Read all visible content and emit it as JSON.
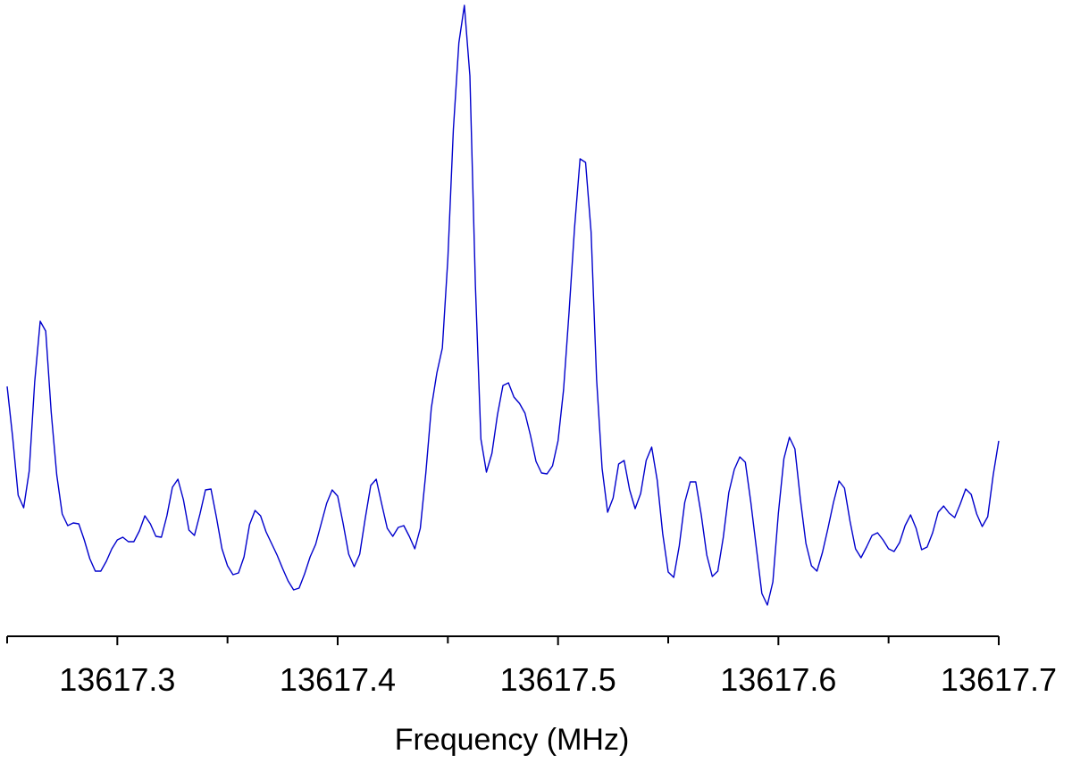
{
  "chart_data": {
    "type": "line",
    "xlabel": "Frequency (MHz)",
    "color": "#0000cc",
    "xlim": [
      13617.25,
      13617.7
    ],
    "ylim": [
      0,
      700
    ],
    "xticks": [
      13617.3,
      13617.4,
      13617.5,
      13617.6,
      13617.7
    ],
    "xminorticks": [
      13617.25,
      13617.35,
      13617.45,
      13617.55,
      13617.65
    ],
    "x": [
      13617.25,
      13617.2525,
      13617.255,
      13617.2575,
      13617.26,
      13617.2625,
      13617.265,
      13617.2675,
      13617.27,
      13617.2725,
      13617.275,
      13617.2775,
      13617.28,
      13617.2825,
      13617.285,
      13617.2875,
      13617.29,
      13617.2925,
      13617.295,
      13617.2975,
      13617.3,
      13617.3025,
      13617.305,
      13617.3075,
      13617.31,
      13617.3125,
      13617.315,
      13617.3175,
      13617.32,
      13617.3225,
      13617.325,
      13617.3275,
      13617.33,
      13617.3325,
      13617.335,
      13617.3375,
      13617.34,
      13617.3425,
      13617.345,
      13617.3475,
      13617.35,
      13617.3525,
      13617.355,
      13617.3575,
      13617.36,
      13617.3625,
      13617.365,
      13617.3675,
      13617.37,
      13617.3725,
      13617.375,
      13617.3775,
      13617.38,
      13617.3825,
      13617.385,
      13617.3875,
      13617.39,
      13617.3925,
      13617.395,
      13617.3975,
      13617.4,
      13617.4025,
      13617.405,
      13617.4075,
      13617.41,
      13617.4125,
      13617.415,
      13617.4175,
      13617.42,
      13617.4225,
      13617.425,
      13617.4275,
      13617.43,
      13617.4325,
      13617.435,
      13617.4375,
      13617.44,
      13617.4425,
      13617.445,
      13617.4475,
      13617.45,
      13617.4525,
      13617.455,
      13617.4575,
      13617.46,
      13617.4625,
      13617.465,
      13617.4675,
      13617.47,
      13617.4725,
      13617.475,
      13617.4775,
      13617.48,
      13617.4825,
      13617.485,
      13617.4875,
      13617.49,
      13617.4925,
      13617.495,
      13617.4975,
      13617.5,
      13617.5025,
      13617.505,
      13617.5075,
      13617.51,
      13617.5125,
      13617.515,
      13617.5175,
      13617.52,
      13617.5225,
      13617.525,
      13617.5275,
      13617.53,
      13617.5325,
      13617.535,
      13617.5375,
      13617.54,
      13617.5425,
      13617.545,
      13617.5475,
      13617.55,
      13617.5525,
      13617.555,
      13617.5575,
      13617.56,
      13617.5625,
      13617.565,
      13617.5675,
      13617.57,
      13617.5725,
      13617.575,
      13617.5775,
      13617.58,
      13617.5825,
      13617.585,
      13617.5875,
      13617.59,
      13617.5925,
      13617.595,
      13617.5975,
      13617.6,
      13617.6025,
      13617.605,
      13617.6075,
      13617.61,
      13617.6125,
      13617.615,
      13617.6175,
      13617.62,
      13617.6225,
      13617.625,
      13617.6275,
      13617.63,
      13617.6325,
      13617.635,
      13617.6375,
      13617.64,
      13617.6425,
      13617.645,
      13617.6475,
      13617.65,
      13617.6525,
      13617.655,
      13617.6575,
      13617.66,
      13617.6625,
      13617.665,
      13617.6675,
      13617.67,
      13617.6725,
      13617.675,
      13617.6775,
      13617.68,
      13617.6825,
      13617.685,
      13617.6875,
      13617.69,
      13617.6925,
      13617.695,
      13617.6975,
      13617.7
    ],
    "values": [
      267,
      210,
      145,
      131,
      172,
      272,
      340,
      329,
      238,
      168,
      124,
      111,
      114,
      113,
      95,
      74,
      60,
      60,
      71,
      85,
      95,
      98,
      93,
      93,
      105,
      122,
      113,
      99,
      98,
      122,
      154,
      163,
      140,
      106,
      100,
      124,
      151,
      152,
      120,
      85,
      66,
      56,
      58,
      76,
      112,
      128,
      122,
      104,
      91,
      78,
      63,
      49,
      39,
      41,
      57,
      76,
      90,
      113,
      136,
      151,
      144,
      113,
      79,
      65,
      79,
      119,
      156,
      163,
      135,
      108,
      99,
      109,
      111,
      99,
      85,
      108,
      170,
      243,
      282,
      310,
      410,
      555,
      652,
      694,
      615,
      380,
      208,
      171,
      192,
      235,
      268,
      271,
      255,
      248,
      237,
      212,
      183,
      170,
      169,
      178,
      206,
      263,
      350,
      445,
      522,
      518,
      440,
      275,
      175,
      126,
      142,
      180,
      184,
      151,
      130,
      147,
      184,
      199,
      162,
      102,
      59,
      53,
      88,
      137,
      160,
      160,
      123,
      78,
      54,
      60,
      98,
      148,
      174,
      188,
      182,
      137,
      86,
      35,
      22,
      48,
      125,
      186,
      210,
      197,
      140,
      91,
      66,
      60,
      81,
      108,
      137,
      161,
      153,
      116,
      85,
      75,
      87,
      100,
      103,
      95,
      85,
      82,
      92,
      111,
      123,
      108,
      84,
      87,
      103,
      126,
      133,
      125,
      120,
      135,
      152,
      146,
      124,
      110,
      121,
      168,
      206
    ]
  }
}
